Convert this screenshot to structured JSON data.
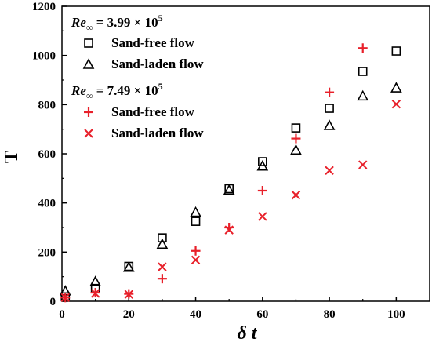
{
  "chart_data": {
    "type": "scatter",
    "xlabel": "δ t",
    "ylabel": "T",
    "xlim": [
      0,
      110
    ],
    "ylim": [
      0,
      1200
    ],
    "xticks": [
      "0",
      "20",
      "40",
      "60",
      "80",
      "100"
    ],
    "yticks": [
      "0",
      "200",
      "400",
      "600",
      "800",
      "1000",
      "1200"
    ],
    "legend_groups": [
      {
        "label_var": "Re",
        "label_sub": "∞",
        "label_eq": " = 3.99 × 10",
        "label_exp": "5"
      },
      {
        "label_var": "Re",
        "label_sub": "∞",
        "label_eq": " = 7.49 × 10",
        "label_exp": "5"
      }
    ],
    "series": [
      {
        "name": "Sand-free flow",
        "group": 0,
        "marker": "square",
        "color": "#000000",
        "x": [
          1,
          10,
          20,
          30,
          40,
          50,
          60,
          70,
          80,
          90,
          100
        ],
        "y": [
          18,
          52,
          142,
          258,
          325,
          458,
          568,
          705,
          785,
          935,
          1018
        ]
      },
      {
        "name": "Sand-laden flow",
        "group": 0,
        "marker": "triangle",
        "color": "#000000",
        "x": [
          1,
          10,
          20,
          30,
          40,
          50,
          60,
          70,
          80,
          90,
          100
        ],
        "y": [
          42,
          80,
          138,
          232,
          362,
          452,
          550,
          615,
          715,
          835,
          868
        ]
      },
      {
        "name": "Sand-free flow",
        "group": 1,
        "marker": "plus",
        "color": "#e8202a",
        "x": [
          1,
          10,
          20,
          30,
          40,
          50,
          60,
          70,
          80,
          90
        ],
        "y": [
          15,
          35,
          30,
          92,
          205,
          300,
          450,
          662,
          850,
          1030
        ]
      },
      {
        "name": "Sand-laden flow",
        "group": 1,
        "marker": "cross",
        "color": "#e8202a",
        "x": [
          1,
          10,
          20,
          30,
          40,
          50,
          60,
          70,
          80,
          90,
          100
        ],
        "y": [
          15,
          32,
          28,
          140,
          168,
          290,
          345,
          432,
          532,
          555,
          802
        ]
      }
    ]
  }
}
